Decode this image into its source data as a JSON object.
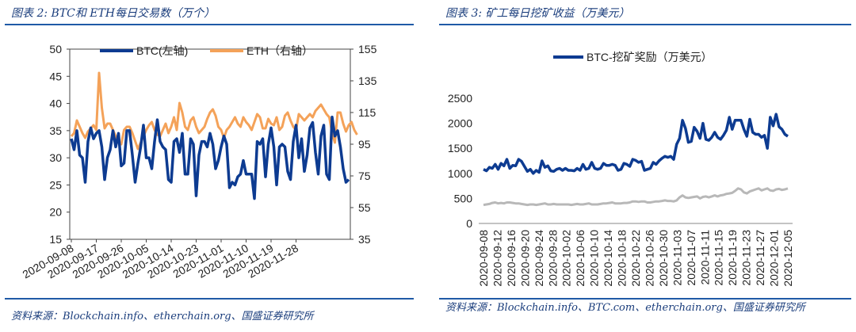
{
  "figures": [
    {
      "title": "图表 2: BTC和 ETH每日交易数（万个）",
      "source": "资料来源：Blockchain.info、etherchain.org、国盛证券研究所"
    },
    {
      "title": "图表 3: 矿工每日挖矿收益（万美元）",
      "source": "资料来源：Blockchain.info、BTC.com、etherchain.org、国盛证券研究所"
    }
  ],
  "colors": {
    "btc": "#0d3b91",
    "eth": "#f4a259",
    "gray": "#b8b8b8",
    "rule": "#1f5aa6"
  },
  "chart_data": [
    {
      "type": "line",
      "title": "",
      "legend": "top",
      "x_ticks": [
        "2020-09-08",
        "2020-09-17",
        "2020-09-26",
        "2020-10-05",
        "2020-10-14",
        "2020-10-23",
        "2020-11-01",
        "2020-11-10",
        "2020-11-19",
        "2020-11-28"
      ],
      "y_left": {
        "ticks": [
          "15",
          "20",
          "25",
          "30",
          "35",
          "40",
          "45",
          "50"
        ],
        "range": [
          15,
          50
        ]
      },
      "y_right": {
        "ticks": [
          "35",
          "55",
          "75",
          "95",
          "115",
          "135",
          "155"
        ],
        "range": [
          35,
          155
        ]
      },
      "series": [
        {
          "name": "BTC(左轴)",
          "axis": "left",
          "color": "#0d3b91",
          "values": [
            33.5,
            31.5,
            35,
            30.5,
            30,
            25.5,
            33,
            35.5,
            33.5,
            34.5,
            35,
            32,
            26,
            30,
            31.5,
            35,
            32,
            34.5,
            28.5,
            29,
            35,
            35,
            30.5,
            25.5,
            29,
            32,
            36,
            30,
            30,
            28,
            33,
            37,
            33,
            32,
            31.5,
            26,
            25.5,
            33,
            33.5,
            31,
            34.5,
            27,
            27,
            33.5,
            32.5,
            23,
            30.5,
            33,
            33,
            32,
            34.5,
            32.5,
            28,
            29.5,
            32,
            34,
            32.5,
            24.5,
            25.5,
            25,
            26.5,
            27,
            29.5,
            27,
            27,
            27,
            22.5,
            33,
            32.5,
            33.5,
            26.5,
            32.5,
            35.5,
            32,
            25,
            32,
            32.5,
            32,
            27.5,
            26,
            33,
            36,
            30,
            33.5,
            27.5,
            30.5,
            35.5,
            36.5,
            31,
            27,
            34,
            36,
            27,
            26,
            37.5,
            34,
            35,
            32,
            28,
            25.5,
            26
          ]
        },
        {
          "name": "ETH（右轴）",
          "axis": "right",
          "color": "#f4a259",
          "values": [
            100,
            102,
            110,
            106,
            102,
            99,
            103,
            105,
            107,
            104,
            140,
            118,
            105,
            108,
            108,
            104,
            100,
            96,
            95,
            104,
            106,
            106,
            102,
            97,
            92,
            96,
            100,
            104,
            107,
            109,
            104,
            101,
            100,
            104,
            108,
            102,
            106,
            112,
            104,
            121,
            115,
            106,
            104,
            110,
            112,
            106,
            102,
            104,
            106,
            111,
            115,
            117,
            113,
            106,
            104,
            99,
            104,
            106,
            109,
            112,
            108,
            106,
            112,
            109,
            107,
            104,
            109,
            114,
            112,
            105,
            105,
            111,
            108,
            107,
            112,
            104,
            106,
            113,
            115,
            110,
            106,
            104,
            114,
            112,
            110,
            112,
            114,
            112,
            116,
            118,
            120,
            117,
            114,
            112,
            102,
            96,
            115,
            115,
            108,
            103,
            107,
            109,
            104,
            101
          ]
        }
      ]
    },
    {
      "type": "line",
      "title": "",
      "legend": "top",
      "x_ticks": [
        "2020-09-08",
        "2020-09-12",
        "2020-09-16",
        "2020-09-20",
        "2020-09-24",
        "2020-09-28",
        "2020-10-02",
        "2020-10-06",
        "2020-10-10",
        "2020-10-14",
        "2020-10-18",
        "2020-10-22",
        "2020-10-26",
        "2020-10-30",
        "2020-11-03",
        "2020-11-07",
        "2020-11-11",
        "2020-11-15",
        "2020-11-19",
        "2020-11-23",
        "2020-11-27",
        "2020-12-01",
        "2020-12-05"
      ],
      "y": {
        "ticks": [
          "0",
          "500",
          "1000",
          "1500",
          "2000",
          "2500"
        ],
        "range": [
          0,
          2500
        ]
      },
      "series": [
        {
          "name": "BTC-挖矿奖励（万美元）",
          "color": "#0d3b91",
          "values": [
            1080,
            1050,
            1120,
            1100,
            1180,
            1080,
            1200,
            1150,
            1280,
            1100,
            1160,
            1150,
            1280,
            1240,
            1140,
            1040,
            1080,
            1000,
            1060,
            1020,
            1250,
            1120,
            1150,
            1050,
            1040,
            1080,
            1100,
            1060,
            1100,
            1060,
            1060,
            1050,
            1100,
            1060,
            1180,
            1080,
            1100,
            1220,
            1100,
            1080,
            1100,
            1200,
            1160,
            1160,
            1180,
            1160,
            1060,
            1080,
            1200,
            1180,
            1140,
            1280,
            1260,
            1220,
            1240,
            1060,
            1080,
            1100,
            1220,
            1180,
            1250,
            1300,
            1340,
            1320,
            1340,
            1280,
            1580,
            1700,
            2060,
            1900,
            1620,
            1640,
            1920,
            1840,
            1700,
            2000,
            1680,
            1660,
            1720,
            1820,
            1720,
            1680,
            1760,
            1860,
            2120,
            1880,
            2060,
            2060,
            2060,
            1880,
            1740,
            2080,
            1820,
            1780,
            1780,
            1720,
            1760,
            1500,
            2120,
            1950,
            2180,
            1930,
            1880,
            1780,
            1740
          ]
        },
        {
          "name": "",
          "color": "#b8b8b8",
          "values": [
            370,
            380,
            390,
            410,
            420,
            400,
            410,
            400,
            420,
            420,
            410,
            400,
            400,
            390,
            380,
            370,
            380,
            380,
            370,
            380,
            390,
            400,
            380,
            380,
            390,
            380,
            380,
            380,
            380,
            380,
            370,
            380,
            390,
            380,
            380,
            390,
            400,
            380,
            380,
            380,
            390,
            400,
            400,
            410,
            420,
            400,
            400,
            400,
            410,
            410,
            420,
            440,
            440,
            430,
            440,
            440,
            420,
            420,
            430,
            440,
            440,
            450,
            460,
            450,
            450,
            440,
            460,
            520,
            560,
            520,
            510,
            520,
            530,
            540,
            500,
            530,
            540,
            520,
            540,
            560,
            540,
            560,
            570,
            590,
            600,
            610,
            650,
            700,
            680,
            620,
            600,
            640,
            660,
            680,
            700,
            660,
            680,
            700,
            660,
            650,
            680,
            690,
            670,
            680,
            700
          ]
        }
      ]
    }
  ]
}
